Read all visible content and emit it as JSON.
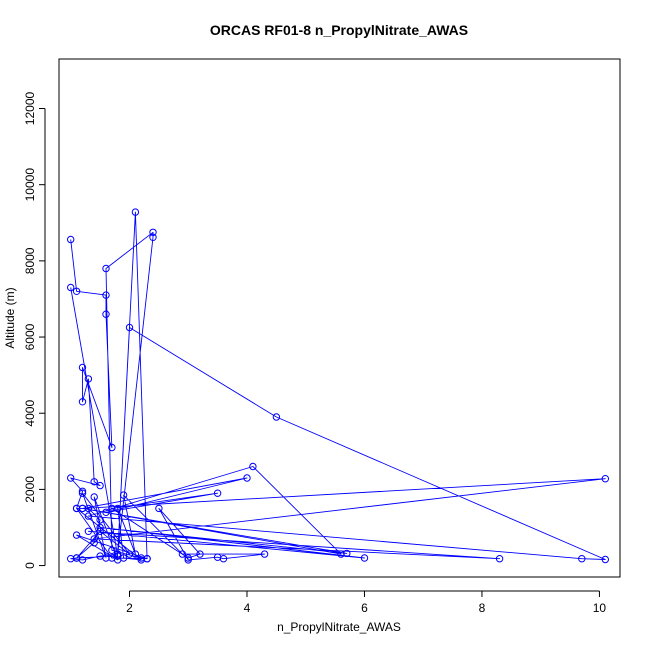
{
  "chart_data": {
    "type": "line",
    "title": "ORCAS RF01-8 n_PropylNitrate_AWAS",
    "xlabel": "n_PropylNitrate_AWAS",
    "ylabel": "Altitude (m)",
    "xlim": [
      0.8,
      10.35
    ],
    "ylim": [
      -300,
      13300
    ],
    "x_ticks": [
      2,
      4,
      6,
      8,
      10
    ],
    "y_ticks": [
      0,
      2000,
      4000,
      6000,
      8000,
      10000,
      12000
    ],
    "grid": false,
    "colors": {
      "series": "#0000ff",
      "axis": "#000000"
    },
    "series": [
      {
        "marker": "open-circle",
        "points": [
          [
            1.0,
            8560
          ],
          [
            1.1,
            7200
          ],
          [
            1.6,
            7100
          ],
          [
            1.6,
            6600
          ],
          [
            1.7,
            3100
          ],
          [
            1.2,
            5200
          ],
          [
            1.2,
            4300
          ],
          [
            1.3,
            4900
          ],
          [
            1.4,
            2200
          ],
          [
            1.5,
            2100
          ],
          [
            1.0,
            2300
          ],
          [
            1.2,
            1950
          ],
          [
            1.1,
            1500
          ],
          [
            1.3,
            1500
          ],
          [
            1.5,
            1200
          ],
          [
            1.4,
            600
          ],
          [
            1.1,
            200
          ],
          [
            1.0,
            180
          ],
          [
            1.2,
            150
          ],
          [
            1.5,
            250
          ],
          [
            1.8,
            300
          ],
          [
            2.1,
            9280
          ],
          [
            2.3,
            180
          ],
          [
            2.2,
            200
          ],
          [
            1.7,
            400
          ],
          [
            1.6,
            7800
          ],
          [
            2.4,
            8750
          ],
          [
            2.4,
            8620
          ],
          [
            1.8,
            300
          ],
          [
            2.0,
            6250
          ],
          [
            4.5,
            3900
          ],
          [
            10.1,
            160
          ],
          [
            9.7,
            180
          ],
          [
            1.3,
            1300
          ],
          [
            4.1,
            2600
          ],
          [
            5.6,
            300
          ],
          [
            1.2,
            1500
          ],
          [
            5.7,
            320
          ],
          [
            1.5,
            1000
          ],
          [
            6.0,
            200
          ],
          [
            1.3,
            900
          ],
          [
            8.3,
            180
          ],
          [
            1.4,
            700
          ],
          [
            10.1,
            2280
          ],
          [
            1.2,
            1500
          ],
          [
            4.0,
            2300
          ],
          [
            1.6,
            1400
          ],
          [
            3.5,
            1900
          ],
          [
            1.7,
            1500
          ],
          [
            3.0,
            200
          ],
          [
            3.2,
            300
          ],
          [
            2.5,
            1500
          ],
          [
            3.0,
            150
          ],
          [
            3.5,
            220
          ],
          [
            3.6,
            180
          ],
          [
            4.3,
            300
          ],
          [
            2.9,
            300
          ],
          [
            1.9,
            1850
          ],
          [
            2.1,
            300
          ],
          [
            1.8,
            1500
          ],
          [
            1.9,
            200
          ],
          [
            2.2,
            150
          ],
          [
            1.1,
            1500
          ],
          [
            1.7,
            200
          ],
          [
            2.3,
            180
          ],
          [
            1.1,
            800
          ],
          [
            1.8,
            150
          ],
          [
            1.4,
            1800
          ],
          [
            1.6,
            200
          ],
          [
            1.2,
            1900
          ],
          [
            2.0,
            300
          ],
          [
            1.5,
            900
          ],
          [
            1.1,
            200
          ],
          [
            1.8,
            250
          ],
          [
            1.0,
            7300
          ]
        ]
      }
    ]
  }
}
